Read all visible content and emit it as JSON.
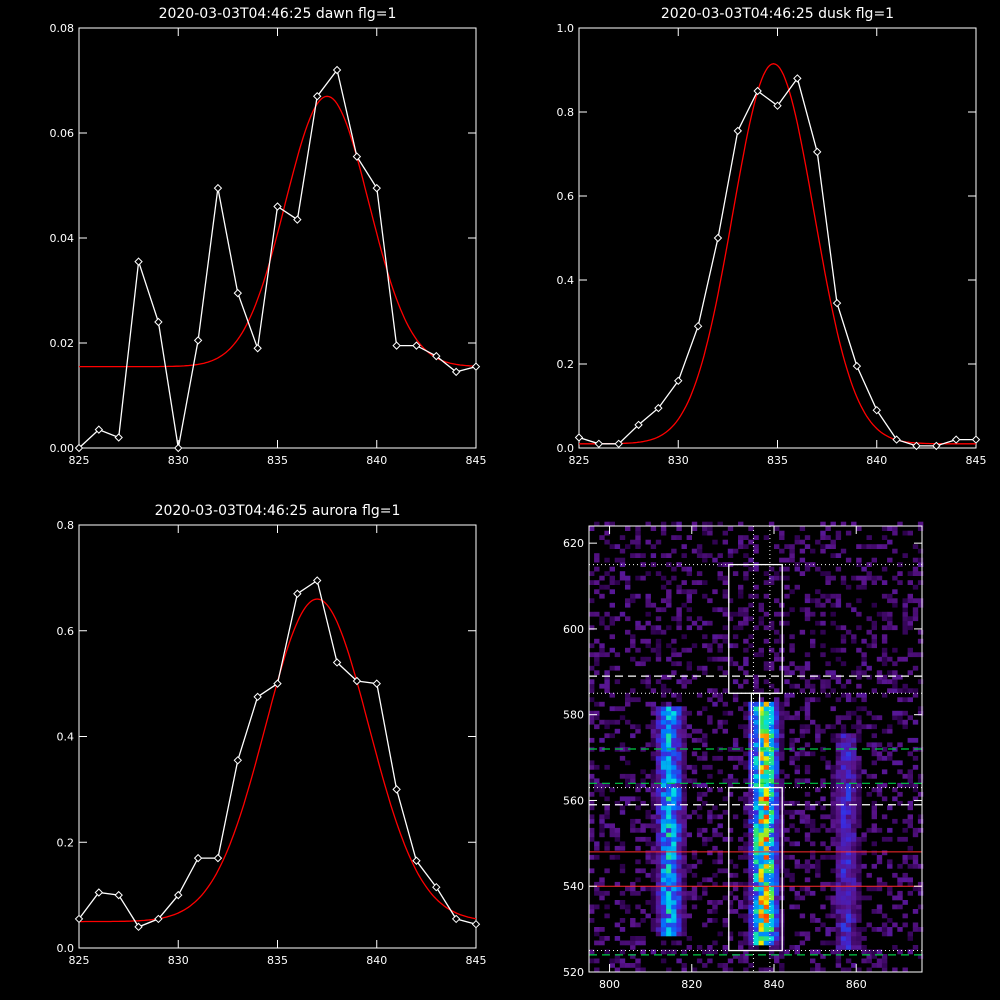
{
  "colors": {
    "background": "#000000",
    "axes": "#ffffff",
    "data": "#ffffff",
    "fit": "#ff0000",
    "guide_green": "#00cc44",
    "guide_red": "#ff2a2a"
  },
  "chart_data": [
    {
      "type": "line",
      "title": "2020-03-03T04:46:25 dawn flg=1",
      "xlim": [
        825,
        845
      ],
      "ylim": [
        0,
        0.08
      ],
      "xticks": [
        "825",
        "830",
        "835",
        "840",
        "845"
      ],
      "yticks": [
        "0.00",
        "0.02",
        "0.04",
        "0.06",
        "0.08"
      ],
      "markers": "diamond",
      "data": {
        "x": [
          825,
          826,
          827,
          828,
          829,
          830,
          831,
          832,
          833,
          834,
          835,
          836,
          837,
          838,
          839,
          840,
          841,
          842,
          843,
          844,
          845
        ],
        "y": [
          0.0,
          0.0035,
          0.002,
          0.0355,
          0.024,
          0.0,
          0.0205,
          0.0495,
          0.0295,
          0.019,
          0.046,
          0.0435,
          0.067,
          0.072,
          0.0555,
          0.0495,
          0.0195,
          0.0195,
          0.0175,
          0.0145,
          0.0155
        ]
      },
      "fit": {
        "offset": 0.0155,
        "amplitude": 0.0515,
        "center": 837.5,
        "sigma": 2.1
      }
    },
    {
      "type": "line",
      "title": "2020-03-03T04:46:25 dusk flg=1",
      "xlim": [
        825,
        845
      ],
      "ylim": [
        0,
        1.0
      ],
      "xticks": [
        "825",
        "830",
        "835",
        "840",
        "845"
      ],
      "yticks": [
        "0.0",
        "0.2",
        "0.4",
        "0.6",
        "0.8",
        "1.0"
      ],
      "markers": "diamond",
      "data": {
        "x": [
          825,
          826,
          827,
          828,
          829,
          830,
          831,
          832,
          833,
          834,
          835,
          836,
          837,
          838,
          839,
          840,
          841,
          842,
          843,
          844,
          845
        ],
        "y": [
          0.025,
          0.01,
          0.01,
          0.055,
          0.095,
          0.16,
          0.29,
          0.5,
          0.755,
          0.85,
          0.815,
          0.88,
          0.705,
          0.345,
          0.195,
          0.09,
          0.02,
          0.005,
          0.005,
          0.02,
          0.02
        ]
      },
      "fit": {
        "offset": 0.01,
        "amplitude": 0.905,
        "center": 834.8,
        "sigma": 2.05
      }
    },
    {
      "type": "line",
      "title": "2020-03-03T04:46:25 aurora flg=1",
      "xlim": [
        825,
        845
      ],
      "ylim": [
        0,
        0.8
      ],
      "xticks": [
        "825",
        "830",
        "835",
        "840",
        "845"
      ],
      "yticks": [
        "0.0",
        "0.2",
        "0.4",
        "0.6",
        "0.8"
      ],
      "markers": "diamond",
      "data": {
        "x": [
          825,
          826,
          827,
          828,
          829,
          830,
          831,
          832,
          833,
          834,
          835,
          836,
          837,
          838,
          839,
          840,
          841,
          842,
          843,
          844,
          845
        ],
        "y": [
          0.055,
          0.105,
          0.1,
          0.04,
          0.055,
          0.1,
          0.17,
          0.17,
          0.355,
          0.475,
          0.5,
          0.67,
          0.695,
          0.54,
          0.505,
          0.5,
          0.3,
          0.165,
          0.115,
          0.055,
          0.045
        ]
      },
      "fit": {
        "offset": 0.05,
        "amplitude": 0.61,
        "center": 837.0,
        "sigma": 2.6
      }
    },
    {
      "type": "heatmap",
      "title": "",
      "xlim": [
        795,
        876
      ],
      "ylim": [
        520,
        624
      ],
      "xticks": [
        "800",
        "820",
        "840",
        "860"
      ],
      "yticks": [
        "520",
        "540",
        "560",
        "580",
        "600",
        "620"
      ],
      "columns": [
        {
          "x": 814,
          "ymin": 528,
          "ymax": 581,
          "peak": 0.65
        },
        {
          "x": 837,
          "ymin": 526,
          "ymax": 582,
          "peak": 1.0
        },
        {
          "x": 857,
          "ymin": 525,
          "ymax": 575,
          "peak": 0.35
        }
      ],
      "boxes": [
        {
          "x": [
            829,
            842
          ],
          "y": [
            525,
            563
          ]
        },
        {
          "x": [
            829,
            842
          ],
          "y": [
            585,
            615
          ]
        }
      ],
      "neck": {
        "x": [
          834.5,
          836.5
        ],
        "y": [
          563,
          585
        ]
      },
      "hlines_white_dotted": [
        615,
        585,
        563,
        525
      ],
      "hlines_white_dashed": [
        589,
        559
      ],
      "hlines_green_dashed": [
        572,
        564,
        524
      ],
      "hlines_red": [
        548,
        540
      ],
      "vlines_white_dotted": [
        835,
        839
      ]
    }
  ]
}
